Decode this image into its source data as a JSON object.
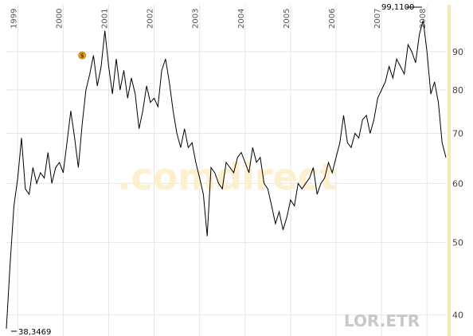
{
  "chart_data": {
    "type": "line",
    "symbol": "LOR.ETR",
    "watermark": ".comdirect",
    "y_scale": "log",
    "ylim": [
      37.5,
      104
    ],
    "y_ticks": [
      40,
      50,
      60,
      70,
      80,
      90
    ],
    "y_tick_labels": [
      "40",
      "50",
      "60",
      "70",
      "80",
      "90"
    ],
    "x_ticks": [
      "1999",
      "2000",
      "2001",
      "2002",
      "2003",
      "2004",
      "2005",
      "2006",
      "2007",
      "2008"
    ],
    "xlim": [
      "1998-10",
      "2008-06"
    ],
    "grid": true,
    "dividend_marker": {
      "label": "$",
      "x": "2000-06",
      "y": 89
    },
    "annotations": {
      "max": {
        "label": "99,1100",
        "x": "2007-12",
        "y": 99.11
      },
      "min": {
        "label": "38,3469",
        "x": "1998-10",
        "y": 38.35
      }
    },
    "colors": {
      "line": "#000000",
      "grid": "#e6e6e6",
      "ticks": "#555555",
      "watermark": "#fdf0cf",
      "right_band": "#f6e8b0",
      "marker": "#e8a317"
    },
    "series": [
      {
        "x": [
          "1998-10",
          "1998-11",
          "1998-12",
          "1999-01",
          "1999-02",
          "1999-03",
          "1999-04",
          "1999-05",
          "1999-06",
          "1999-07",
          "1999-08",
          "1999-09",
          "1999-10",
          "1999-11",
          "1999-12",
          "2000-01",
          "2000-02",
          "2000-03",
          "2000-04",
          "2000-05",
          "2000-06",
          "2000-07",
          "2000-08",
          "2000-09",
          "2000-10",
          "2000-11",
          "2000-12",
          "2001-01",
          "2001-02",
          "2001-03",
          "2001-04",
          "2001-05",
          "2001-06",
          "2001-07",
          "2001-08",
          "2001-09",
          "2001-10",
          "2001-11",
          "2001-12",
          "2002-01",
          "2002-02",
          "2002-03",
          "2002-04",
          "2002-05",
          "2002-06",
          "2002-07",
          "2002-08",
          "2002-09",
          "2002-10",
          "2002-11",
          "2002-12",
          "2003-01",
          "2003-02",
          "2003-03",
          "2003-04",
          "2003-05",
          "2003-06",
          "2003-07",
          "2003-08",
          "2003-09",
          "2003-10",
          "2003-11",
          "2003-12",
          "2004-01",
          "2004-02",
          "2004-03",
          "2004-04",
          "2004-05",
          "2004-06",
          "2004-07",
          "2004-08",
          "2004-09",
          "2004-10",
          "2004-11",
          "2004-12",
          "2005-01",
          "2005-02",
          "2005-03",
          "2005-04",
          "2005-05",
          "2005-06",
          "2005-07",
          "2005-08",
          "2005-09",
          "2005-10",
          "2005-11",
          "2005-12",
          "2006-01",
          "2006-02",
          "2006-03",
          "2006-04",
          "2006-05",
          "2006-06",
          "2006-07",
          "2006-08",
          "2006-09",
          "2006-10",
          "2006-11",
          "2006-12",
          "2007-01",
          "2007-02",
          "2007-03",
          "2007-04",
          "2007-05",
          "2007-06",
          "2007-07",
          "2007-08",
          "2007-09",
          "2007-10",
          "2007-11",
          "2007-12",
          "2008-01",
          "2008-02",
          "2008-03",
          "2008-04",
          "2008-05",
          "2008-06"
        ],
        "y": [
          38.35,
          47,
          56,
          61,
          69,
          59,
          58,
          63,
          60,
          62,
          61,
          66,
          60,
          63,
          64,
          62,
          68,
          75,
          69,
          63,
          72,
          80,
          84,
          89,
          81,
          86,
          96,
          86,
          79,
          88,
          80,
          85,
          78,
          83,
          79,
          71,
          75,
          81,
          77,
          78,
          76,
          85,
          88,
          82,
          75,
          70,
          67,
          71,
          67,
          68,
          64,
          61,
          58,
          51,
          63,
          62,
          60,
          59,
          64,
          63,
          62,
          65,
          66,
          64,
          62,
          67,
          64,
          65,
          60,
          59,
          56,
          53,
          55,
          52,
          54,
          57,
          56,
          60,
          59,
          60,
          61,
          63,
          58,
          60,
          61,
          64,
          62,
          65,
          68,
          74,
          68,
          67,
          70,
          69,
          73,
          74,
          70,
          73,
          78,
          80,
          82,
          86,
          83,
          88,
          86,
          84,
          92,
          90,
          87,
          95,
          99.11,
          90,
          79,
          82,
          77,
          68,
          65
        ]
      }
    ]
  }
}
